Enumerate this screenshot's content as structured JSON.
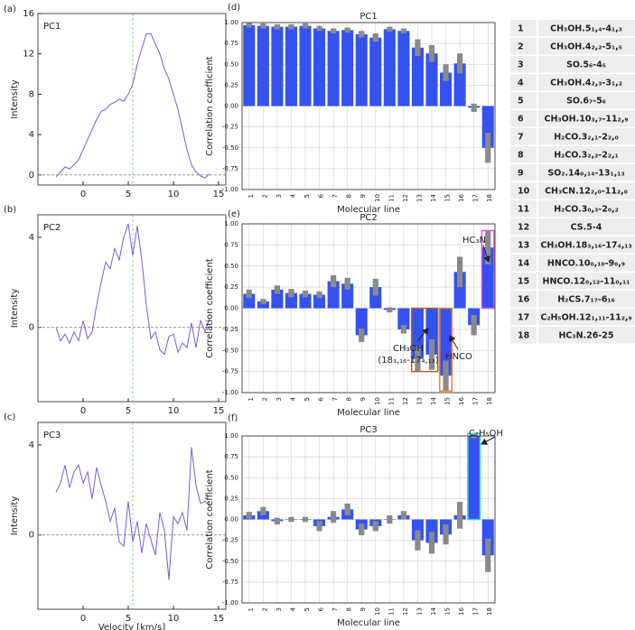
{
  "chart_data": [
    {
      "type": "line",
      "panel": "(a)",
      "title": "PC1",
      "ylabel": "Intensity",
      "color": "#7b5cd6",
      "x": [
        -3,
        -2.5,
        -2,
        -1.5,
        -1,
        -0.5,
        0,
        0.5,
        1,
        1.5,
        2,
        2.5,
        3,
        3.5,
        4,
        4.5,
        5,
        5.5,
        6,
        6.5,
        7,
        7.5,
        8,
        8.5,
        9,
        9.5,
        10,
        10.5,
        11,
        11.5,
        12,
        12.5,
        13,
        13.5,
        14
      ],
      "values": [
        -0.2,
        0.3,
        0.8,
        0.6,
        1.0,
        1.5,
        2.5,
        3.5,
        4.5,
        5.5,
        6.3,
        6.5,
        7,
        7.2,
        7.5,
        7.3,
        8,
        9,
        11,
        12.5,
        14,
        14,
        13,
        12,
        10.5,
        9.5,
        8,
        6.5,
        4.5,
        2.5,
        1,
        0.3,
        -0.1,
        -0.3,
        0.1
      ],
      "xlim": [
        -5,
        15.8
      ],
      "ylim": [
        -1,
        16
      ],
      "xticks": [
        0,
        5,
        10,
        15
      ],
      "yticks": [
        0,
        4,
        8,
        12,
        16
      ],
      "vline": 5.5,
      "hline": 0
    },
    {
      "type": "line",
      "panel": "(b)",
      "title": "PC2",
      "ylabel": "Intensity",
      "color": "#7b5cd6",
      "x": [
        -3,
        -2.5,
        -2,
        -1.5,
        -1,
        -0.5,
        0,
        0.5,
        1,
        1.5,
        2,
        2.5,
        3,
        3.5,
        4,
        4.5,
        5,
        5.5,
        6,
        6.5,
        7,
        7.5,
        8,
        8.5,
        9,
        9.5,
        10,
        10.5,
        11,
        11.5,
        12,
        12.5,
        13,
        13.5,
        14
      ],
      "values": [
        0,
        -0.6,
        -0.3,
        -0.7,
        -0.2,
        -0.6,
        0.3,
        -0.5,
        -0.2,
        1.0,
        2.0,
        2.9,
        2.6,
        3.5,
        3.0,
        4.0,
        4.6,
        3.2,
        4.5,
        3.0,
        1.0,
        -0.5,
        -0.2,
        -1.0,
        -1.2,
        -0.4,
        -0.3,
        -1.1,
        -0.7,
        -0.9,
        0.2,
        -0.9,
        0.3,
        -0.2,
        0.4
      ],
      "xlim": [
        -5,
        15.8
      ],
      "ylim": [
        -3.3,
        5
      ],
      "xticks": [
        0,
        5,
        10,
        15
      ],
      "yticks": [
        0,
        4
      ],
      "vline": 5.5,
      "hline": 0
    },
    {
      "type": "line",
      "panel": "(c)",
      "title": "PC3",
      "ylabel": "Intensity",
      "xlabel": "Velocity [km/s]",
      "color": "#7b5cd6",
      "x": [
        -3,
        -2.5,
        -2,
        -1.5,
        -1,
        -0.5,
        0,
        0.5,
        1,
        1.5,
        2,
        2.5,
        3,
        3.5,
        4,
        4.5,
        5,
        5.5,
        6,
        6.5,
        7,
        7.5,
        8,
        8.5,
        9,
        9.5,
        10,
        10.5,
        11,
        11.5,
        12,
        12.5,
        13,
        13.5,
        14
      ],
      "values": [
        1.9,
        2.3,
        3.1,
        2.1,
        2.8,
        3.1,
        2.3,
        2.8,
        1.6,
        3.0,
        2.2,
        1.5,
        0.6,
        1.2,
        -0.3,
        -0.5,
        1.5,
        -0.3,
        0.6,
        -0.8,
        0.5,
        -0.2,
        -0.9,
        1.0,
        0.2,
        -2.0,
        0.8,
        0.5,
        1.0,
        0.2,
        3.9,
        2.2,
        1.4,
        1.5,
        1.3
      ],
      "xlim": [
        -5,
        15.8
      ],
      "ylim": [
        -3.3,
        5
      ],
      "xticks": [
        0,
        5,
        10,
        15
      ],
      "yticks": [
        0,
        4
      ],
      "vline": 5.5,
      "hline": 0
    },
    {
      "type": "bar",
      "panel": "(d)",
      "title": "PC1",
      "ylabel": "Correlation coefficient",
      "xlabel": "Molecular line",
      "color": "#3552ee",
      "error_color": "#8a8a8a",
      "categories": [
        "1",
        "2",
        "3",
        "4",
        "5",
        "6",
        "7",
        "8",
        "9",
        "10",
        "11",
        "12",
        "13",
        "14",
        "15",
        "16",
        "17",
        "18"
      ],
      "values": [
        0.97,
        0.96,
        0.95,
        0.95,
        0.96,
        0.93,
        0.9,
        0.91,
        0.86,
        0.82,
        0.92,
        0.9,
        0.7,
        0.63,
        0.4,
        0.51,
        -0.02,
        -0.5
      ],
      "errors": [
        0.03,
        0.03,
        0.03,
        0.03,
        0.03,
        0.03,
        0.03,
        0.03,
        0.04,
        0.05,
        0.03,
        0.03,
        0.1,
        0.1,
        0.1,
        0.12,
        0.05,
        0.18
      ],
      "ylim": [
        -1,
        1
      ],
      "yticks": [
        {
          "value": -1,
          "label": "-1.00"
        },
        {
          "value": -0.75,
          "label": "-0.75"
        },
        {
          "value": -0.5,
          "label": "-0.50"
        },
        {
          "value": -0.25,
          "label": "-0.25"
        },
        {
          "value": 0,
          "label": "0.00"
        },
        {
          "value": 0.25,
          "label": "0.25"
        },
        {
          "value": 0.5,
          "label": "0.50"
        },
        {
          "value": 0.75,
          "label": "0.75"
        },
        {
          "value": 1,
          "label": "1.00"
        }
      ],
      "grid": true
    },
    {
      "type": "bar",
      "panel": "(e)",
      "title": "PC2",
      "ylabel": "Correlation coefficient",
      "xlabel": "Molecular line",
      "color": "#3552ee",
      "error_color": "#8a8a8a",
      "categories": [
        "1",
        "2",
        "3",
        "4",
        "5",
        "6",
        "7",
        "8",
        "9",
        "10",
        "11",
        "12",
        "13",
        "14",
        "15",
        "16",
        "17",
        "18"
      ],
      "values": [
        0.17,
        0.08,
        0.22,
        0.18,
        0.17,
        0.16,
        0.32,
        0.29,
        -0.32,
        0.25,
        -0.02,
        -0.25,
        -0.6,
        -0.55,
        -0.8,
        0.43,
        -0.2,
        0.72
      ],
      "errors": [
        0.05,
        0.03,
        0.05,
        0.05,
        0.04,
        0.04,
        0.07,
        0.07,
        0.08,
        0.1,
        0.03,
        0.05,
        0.15,
        0.18,
        0.18,
        0.18,
        0.12,
        0.2
      ],
      "ylim": [
        -1,
        1
      ],
      "yticks": [
        {
          "value": -1,
          "label": "-1.00"
        },
        {
          "value": -0.75,
          "label": "-0.75"
        },
        {
          "value": -0.5,
          "label": "-0.50"
        },
        {
          "value": -0.25,
          "label": "-0.25"
        },
        {
          "value": 0,
          "label": "0.00"
        },
        {
          "value": 0.25,
          "label": "0.25"
        },
        {
          "value": 0.5,
          "label": "0.50"
        },
        {
          "value": 0.75,
          "label": "0.75"
        },
        {
          "value": 1,
          "label": "1.00"
        }
      ],
      "grid": true,
      "annotations": [
        {
          "text": "HC₃N",
          "color": "#e050e0"
        },
        {
          "text": "CH₃OH",
          "color": "#b8602a"
        },
        {
          "text": "(18₃,₁₆-17₄,₁₃)",
          "color": "#b8602a"
        },
        {
          "text": "HNCO",
          "color": "#f08030"
        }
      ]
    },
    {
      "type": "bar",
      "panel": "(f)",
      "title": "PC3",
      "ylabel": "Correlation coefficient",
      "xlabel": "Molecular line",
      "color": "#3552ee",
      "error_color": "#8a8a8a",
      "categories": [
        "1",
        "2",
        "3",
        "4",
        "5",
        "6",
        "7",
        "8",
        "9",
        "10",
        "11",
        "12",
        "13",
        "14",
        "15",
        "16",
        "17",
        "18"
      ],
      "values": [
        0.05,
        0.1,
        -0.02,
        0.0,
        0.0,
        -0.08,
        0.03,
        0.12,
        -0.12,
        -0.08,
        0.0,
        0.05,
        -0.25,
        -0.28,
        -0.18,
        0.05,
        1.0,
        -0.43
      ],
      "errors": [
        0.04,
        0.05,
        0.04,
        0.03,
        0.03,
        0.06,
        0.07,
        0.07,
        0.07,
        0.06,
        0.05,
        0.05,
        0.12,
        0.13,
        0.12,
        0.16,
        0.03,
        0.2
      ],
      "ylim": [
        -1,
        1
      ],
      "yticks": [
        {
          "value": -1,
          "label": "-1.00"
        },
        {
          "value": -0.75,
          "label": "-0.75"
        },
        {
          "value": -0.5,
          "label": "-0.50"
        },
        {
          "value": -0.25,
          "label": "-0.25"
        },
        {
          "value": 0,
          "label": "0.00"
        },
        {
          "value": 0.25,
          "label": "0.25"
        },
        {
          "value": 0.5,
          "label": "0.50"
        },
        {
          "value": 0.75,
          "label": "0.75"
        },
        {
          "value": 1,
          "label": "1.00"
        }
      ],
      "grid": true,
      "annotations": [
        {
          "text": "C₂H₅OH",
          "color": "#40d0e8"
        }
      ]
    }
  ],
  "table": {
    "rows": [
      [
        "1",
        "CH₃OH.5₁,₄-4₁,₃"
      ],
      [
        "2",
        "CH₃OH.4₂,₂-5₁,₅"
      ],
      [
        "3",
        "SO.5₆-4₅"
      ],
      [
        "4",
        "CH₃OH.4₂,₃-3₁,₂"
      ],
      [
        "5",
        "SO.6₇-5₆"
      ],
      [
        "6",
        "CH₃OH.10₃,₇-11₂,₉"
      ],
      [
        "7",
        "H₂CO.3₂,₁-2₂,₀"
      ],
      [
        "8",
        "H₂CO.3₂,₂-2₂,₁"
      ],
      [
        "9",
        "SO₂.14₀,₁₄-13₁,₁₃"
      ],
      [
        "10",
        "CH₃CN.12₂,₀-11₂,₀"
      ],
      [
        "11",
        "H₂CO.3₀,₃-2₀,₂"
      ],
      [
        "12",
        "CS.5-4"
      ],
      [
        "13",
        "CH₃OH.18₃,₁₆-17₄,₁₃"
      ],
      [
        "14",
        "HNCO.10₀,₁₀-9₀,₉"
      ],
      [
        "15",
        "HNCO.12₀,₁₂-11₀,₁₁"
      ],
      [
        "16",
        "H₂CS.7₁₇-6₁₆"
      ],
      [
        "17",
        "C₂H₅OH.12₁,₁₁-11₂,₉"
      ],
      [
        "18",
        "HC₃N.26-25"
      ]
    ]
  }
}
